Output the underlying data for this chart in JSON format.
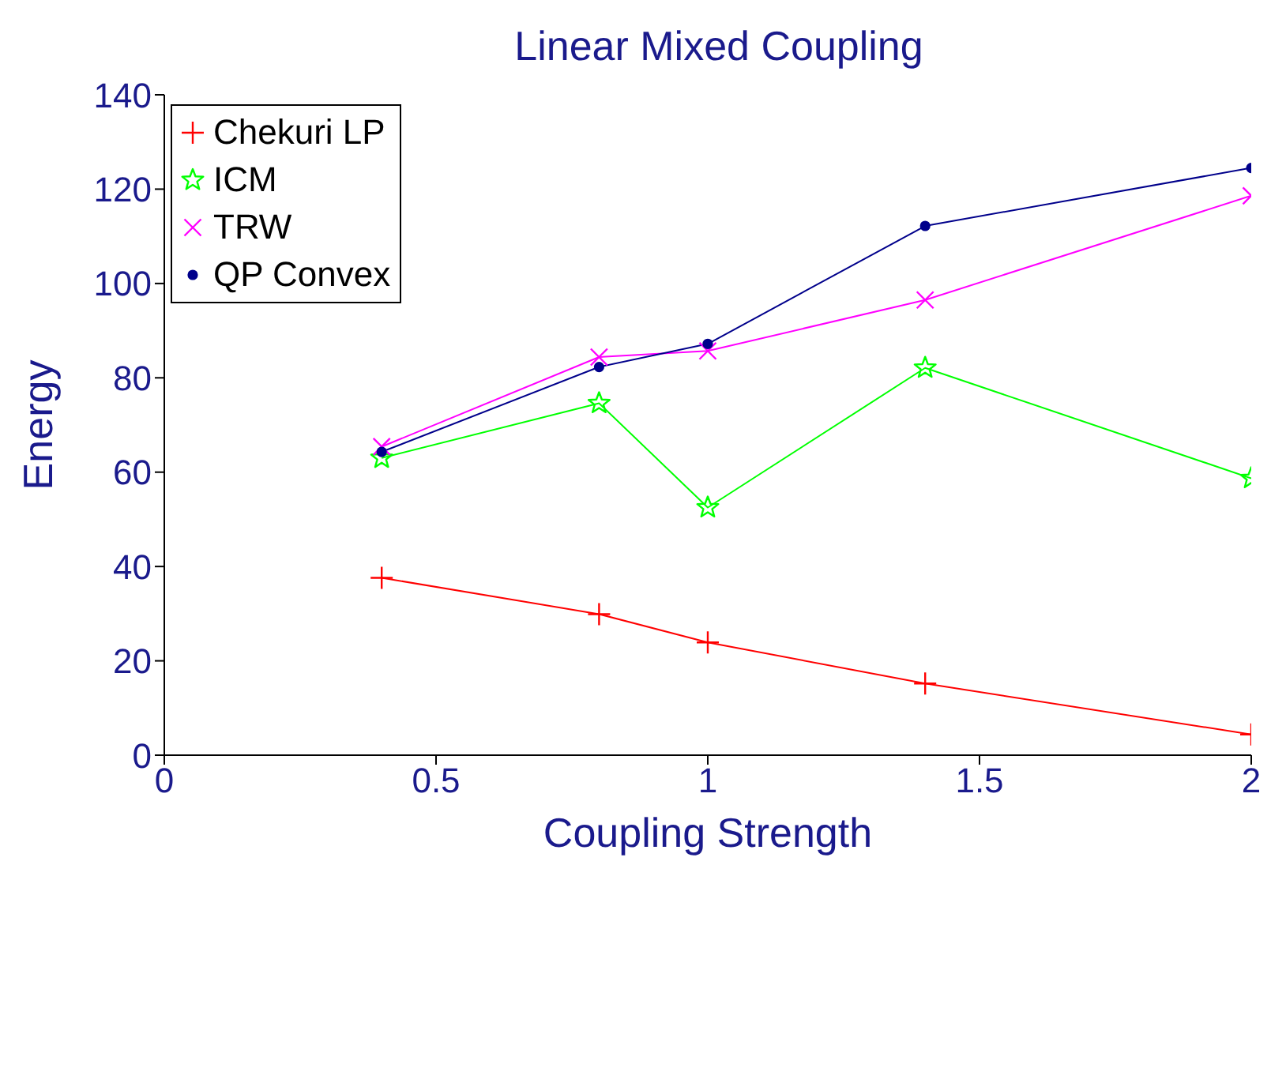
{
  "chart_data": {
    "type": "line",
    "title": "Linear Mixed Coupling",
    "xlabel": "Coupling Strength",
    "ylabel": "Energy",
    "x": [
      0.4,
      0.8,
      1.0,
      1.4,
      2.0
    ],
    "series": [
      {
        "name": "Chekuri LP",
        "color": "#ff0000",
        "marker": "plus",
        "values": [
          37.6,
          29.9,
          23.9,
          15.2,
          4.4
        ]
      },
      {
        "name": "ICM",
        "color": "#00ff00",
        "marker": "star",
        "values": [
          63.0,
          74.6,
          52.5,
          82.1,
          58.7
        ]
      },
      {
        "name": "TRW",
        "color": "#ff00ff",
        "marker": "cross",
        "values": [
          65.4,
          84.4,
          85.7,
          96.5,
          118.6
        ]
      },
      {
        "name": "QP Convex",
        "color": "#00008b",
        "marker": "circle",
        "values": [
          64.3,
          82.3,
          87.2,
          112.2,
          124.5
        ]
      }
    ],
    "xlim": [
      0,
      2
    ],
    "xticks": [
      0,
      0.5,
      1,
      1.5,
      2
    ],
    "ylim": [
      0,
      140
    ],
    "yticks": [
      0,
      20,
      40,
      60,
      80,
      100,
      120,
      140
    ],
    "grid": false,
    "legend": "top left"
  }
}
